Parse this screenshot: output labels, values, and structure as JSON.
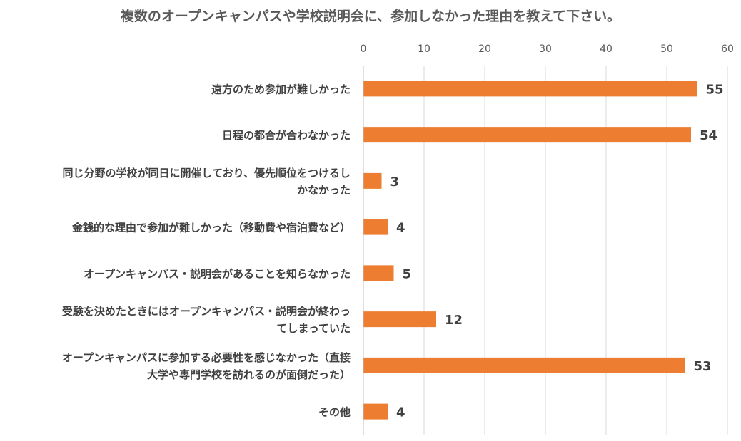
{
  "chart_data": {
    "type": "bar",
    "orientation": "horizontal",
    "title": "複数のオープンキャンパスや学校説明会に、参加しなかった理由を教えて下さい。",
    "xlim": [
      0,
      60
    ],
    "xticks": [
      0,
      10,
      20,
      30,
      40,
      50,
      60
    ],
    "tick_position": "top",
    "grid": true,
    "bar_color": "#ED7D31",
    "categories": [
      [
        "遠方のため参加が難しかった"
      ],
      [
        "日程の都合が合わなかった"
      ],
      [
        "同じ分野の学校が同日に開催しており、優先順位をつけるし",
        "かなかった"
      ],
      [
        "金銭的な理由で参加が難しかった（移動費や宿泊費など）"
      ],
      [
        "オープンキャンパス・説明会があることを知らなかった"
      ],
      [
        "受験を決めたときにはオープンキャンパス・説明会が終わっ",
        "てしまっていた"
      ],
      [
        "オープンキャンパスに参加する必要性を感じなかった（直接",
        "大学や専門学校を訪れるのが面倒だった）"
      ],
      [
        "その他"
      ]
    ],
    "values": [
      55,
      54,
      3,
      4,
      5,
      12,
      53,
      4
    ]
  }
}
